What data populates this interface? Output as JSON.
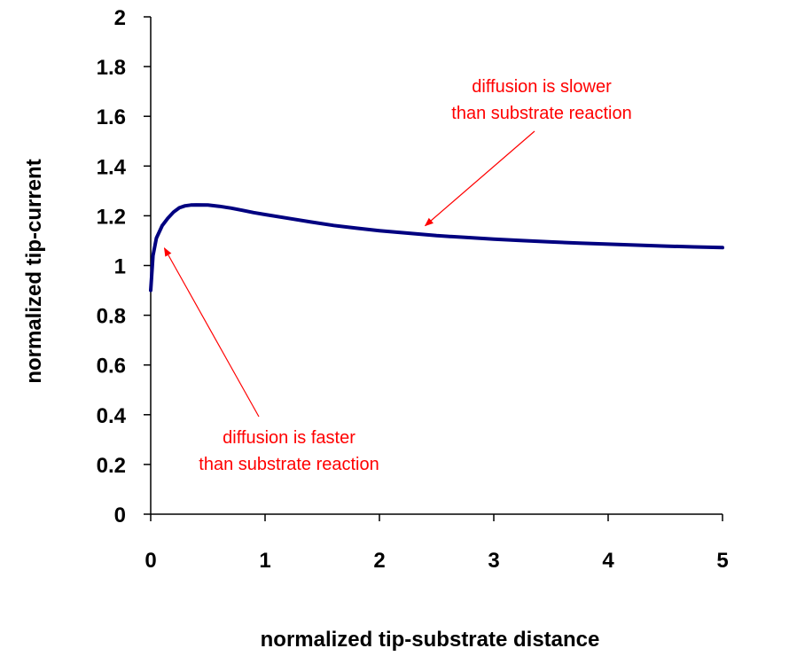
{
  "chart_data": {
    "type": "line",
    "xlabel": "normalized tip-substrate distance",
    "ylabel": "normalized tip-current",
    "xlim": [
      0,
      5
    ],
    "ylim": [
      0,
      2
    ],
    "x_ticks": [
      "0",
      "1",
      "2",
      "3",
      "4",
      "5"
    ],
    "y_ticks": [
      "0",
      "0.2",
      "0.4",
      "0.6",
      "0.8",
      "1",
      "1.2",
      "1.4",
      "1.6",
      "1.8",
      "2"
    ],
    "grid": false,
    "legend": "none",
    "series": [
      {
        "color": "#000080",
        "x": [
          0.0,
          0.02,
          0.05,
          0.1,
          0.15,
          0.2,
          0.25,
          0.3,
          0.35,
          0.4,
          0.5,
          0.6,
          0.7,
          0.8,
          0.9,
          1.0,
          1.2,
          1.4,
          1.6,
          1.8,
          2.0,
          2.25,
          2.5,
          2.75,
          3.0,
          3.25,
          3.5,
          3.75,
          4.0,
          4.25,
          4.5,
          4.75,
          5.0
        ],
        "y": [
          0.9,
          1.04,
          1.11,
          1.16,
          1.19,
          1.215,
          1.232,
          1.24,
          1.243,
          1.244,
          1.243,
          1.238,
          1.231,
          1.222,
          1.213,
          1.205,
          1.19,
          1.175,
          1.161,
          1.15,
          1.14,
          1.13,
          1.12,
          1.113,
          1.106,
          1.1,
          1.095,
          1.09,
          1.086,
          1.082,
          1.078,
          1.075,
          1.072
        ]
      }
    ],
    "annotations": [
      {
        "text_lines": [
          "diffusion is slower",
          "than substrate reaction"
        ],
        "color": "#ff0000",
        "arrow_to": [
          2.4,
          1.16
        ]
      },
      {
        "text_lines": [
          "diffusion is faster",
          "than substrate reaction"
        ],
        "color": "#ff0000",
        "arrow_to": [
          0.12,
          1.07
        ]
      }
    ]
  }
}
